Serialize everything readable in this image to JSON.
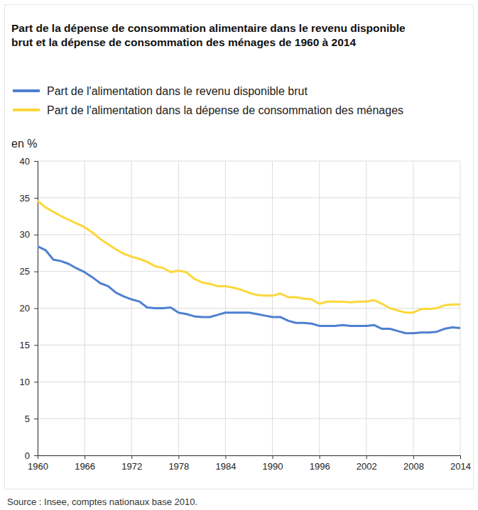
{
  "chart_data": {
    "type": "line",
    "title": "Part de la dépense de consommation alimentaire dans le revenu disponible brut et la dépense de consommation des ménages de 1960 à 2014",
    "y_label": "en %",
    "source": "Source : Insee, comptes nationaux base 2010.",
    "x": [
      1960,
      1961,
      1962,
      1963,
      1964,
      1965,
      1966,
      1967,
      1968,
      1969,
      1970,
      1971,
      1972,
      1973,
      1974,
      1975,
      1976,
      1977,
      1978,
      1979,
      1980,
      1981,
      1982,
      1983,
      1984,
      1985,
      1986,
      1987,
      1988,
      1989,
      1990,
      1991,
      1992,
      1993,
      1994,
      1995,
      1996,
      1997,
      1998,
      1999,
      2000,
      2001,
      2002,
      2003,
      2004,
      2005,
      2006,
      2007,
      2008,
      2009,
      2010,
      2011,
      2012,
      2013,
      2014
    ],
    "series": [
      {
        "name": "Part de l'alimentation dans le revenu disponible brut",
        "color": "#4e80d1",
        "values": [
          28.4,
          27.9,
          26.6,
          26.4,
          26.0,
          25.4,
          24.9,
          24.2,
          23.4,
          23.0,
          22.1,
          21.6,
          21.2,
          20.9,
          20.1,
          20.0,
          20.0,
          20.1,
          19.4,
          19.2,
          18.9,
          18.8,
          18.8,
          19.1,
          19.4,
          19.4,
          19.4,
          19.4,
          19.2,
          19.0,
          18.8,
          18.8,
          18.3,
          18.0,
          18.0,
          17.9,
          17.6,
          17.6,
          17.6,
          17.7,
          17.6,
          17.6,
          17.6,
          17.7,
          17.2,
          17.2,
          16.9,
          16.6,
          16.6,
          16.7,
          16.7,
          16.8,
          17.2,
          17.4,
          17.3
        ]
      },
      {
        "name": "Part de l'alimentation dans la dépense de consommation des ménages",
        "color": "#fcd73a",
        "values": [
          34.6,
          33.7,
          33.1,
          32.5,
          32.0,
          31.5,
          31.0,
          30.3,
          29.4,
          28.7,
          28.0,
          27.4,
          27.0,
          26.7,
          26.3,
          25.7,
          25.5,
          24.9,
          25.1,
          24.9,
          24.0,
          23.5,
          23.3,
          23.0,
          23.0,
          22.8,
          22.5,
          22.1,
          21.8,
          21.7,
          21.7,
          22.0,
          21.5,
          21.5,
          21.3,
          21.2,
          20.6,
          20.9,
          20.9,
          20.9,
          20.8,
          20.9,
          20.9,
          21.1,
          20.6,
          20.0,
          19.7,
          19.4,
          19.4,
          19.9,
          19.9,
          20.0,
          20.4,
          20.5,
          20.5
        ]
      }
    ],
    "xlim": [
      1960,
      2014
    ],
    "xticks": [
      1960,
      1966,
      1972,
      1978,
      1984,
      1990,
      1996,
      2002,
      2008,
      2014
    ],
    "ylim": [
      0,
      40
    ],
    "yticks": [
      0,
      5,
      10,
      15,
      20,
      25,
      30,
      35,
      40
    ],
    "grid": true,
    "legend": "top-left"
  }
}
